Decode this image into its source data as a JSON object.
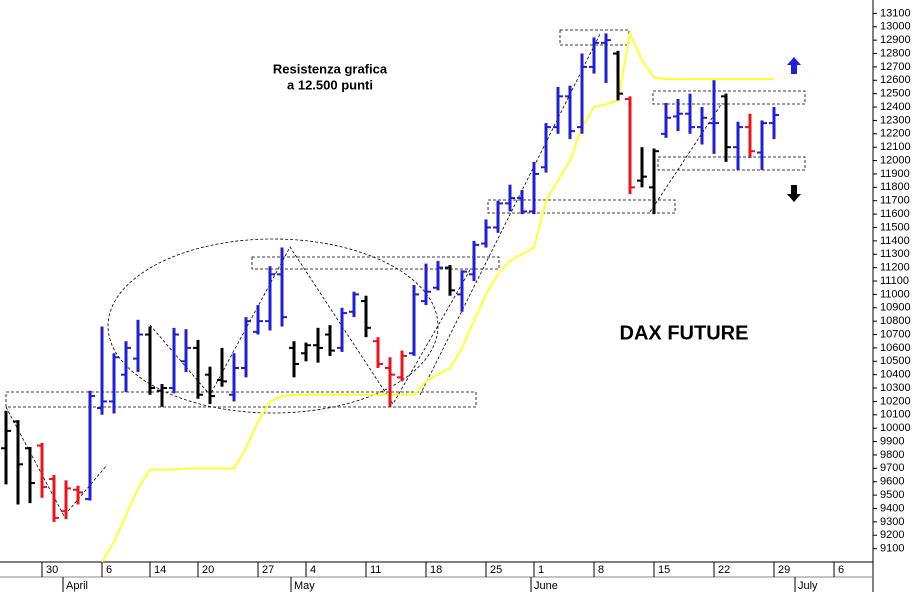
{
  "chart_data": {
    "type": "ohlc",
    "categories": [
      null,
      null,
      null,
      "30",
      null,
      null,
      null,
      null,
      "6",
      null,
      null,
      null,
      "14",
      null,
      null,
      null,
      "20",
      null,
      null,
      null,
      null,
      "27",
      null,
      null,
      null,
      "4",
      null,
      null,
      null,
      null,
      "11",
      null,
      null,
      null,
      null,
      "18",
      null,
      null,
      null,
      null,
      "25",
      null,
      null,
      null,
      "1",
      null,
      null,
      null,
      null,
      "8",
      null,
      null,
      null,
      null,
      "15",
      null,
      null,
      null,
      null,
      "22",
      null,
      null,
      null,
      null,
      "29",
      null,
      null,
      null,
      null,
      "6",
      null,
      null,
      null
    ],
    "month_categories": [
      null,
      null,
      null,
      null,
      null,
      "April",
      null,
      null,
      null,
      null,
      null,
      null,
      null,
      null,
      null,
      null,
      null,
      null,
      null,
      null,
      null,
      null,
      null,
      null,
      "May",
      null,
      null,
      null,
      null,
      null,
      null,
      null,
      null,
      null,
      null,
      null,
      null,
      null,
      null,
      null,
      null,
      null,
      null,
      null,
      "June",
      null,
      null,
      null,
      null,
      null,
      null,
      null,
      null,
      null,
      null,
      null,
      null,
      null,
      null,
      null,
      null,
      null,
      null,
      null,
      null,
      null,
      "July",
      null,
      null,
      null,
      null,
      null,
      null
    ],
    "series": {
      "open": [
        9850,
        10050,
        9850,
        9870,
        9620,
        9380,
        9540,
        9470,
        10150,
        10200,
        10400,
        10520,
        10700,
        10280,
        10300,
        10500,
        10600,
        10400,
        10360,
        10250,
        10450,
        10720,
        10800,
        11150,
        10600,
        10560,
        10620,
        10700,
        10600,
        10870,
        10950,
        10650,
        10450,
        10380,
        10560,
        10950,
        11050,
        11200,
        11000,
        11150,
        11380,
        11500,
        11680,
        11720,
        11620,
        11950,
        12250,
        12480,
        12250,
        12700,
        12880,
        12800,
        12460,
        11850,
        11800,
        12200,
        12330,
        12350,
        12250,
        12280,
        12480,
        12100,
        12250,
        12060,
        12280,
        null,
        null,
        null,
        null,
        null,
        null,
        null,
        null
      ],
      "high": [
        10130,
        10060,
        9860,
        9890,
        9650,
        9610,
        9570,
        10280,
        10760,
        10560,
        10650,
        10810,
        10760,
        10330,
        10750,
        10740,
        10660,
        10460,
        10600,
        10560,
        10830,
        10920,
        11210,
        11350,
        10650,
        10640,
        10750,
        10770,
        10900,
        11020,
        10990,
        10680,
        10530,
        10580,
        11070,
        11230,
        11250,
        11220,
        11180,
        11400,
        11560,
        11700,
        11820,
        11780,
        11990,
        12280,
        12550,
        12560,
        12800,
        12920,
        12950,
        12820,
        12480,
        12100,
        12090,
        12430,
        12460,
        12500,
        12400,
        12600,
        12500,
        12290,
        12350,
        12300,
        12400,
        null,
        null,
        null,
        null,
        null,
        null,
        null,
        null
      ],
      "low": [
        9580,
        9430,
        9440,
        9480,
        9300,
        9320,
        9430,
        9460,
        10100,
        10110,
        10270,
        10420,
        10250,
        10160,
        10260,
        10420,
        10220,
        10180,
        10310,
        10200,
        10380,
        10700,
        10730,
        10760,
        10380,
        10500,
        10490,
        10540,
        10570,
        10830,
        10680,
        10450,
        10160,
        10350,
        10540,
        10920,
        11030,
        10990,
        10870,
        11100,
        11350,
        11460,
        11620,
        11600,
        11600,
        11910,
        12200,
        12160,
        12200,
        12650,
        12580,
        12450,
        11750,
        11800,
        11600,
        12170,
        12220,
        12200,
        12120,
        12050,
        11990,
        11930,
        12020,
        11930,
        12160,
        null,
        null,
        null,
        null,
        null,
        null,
        null,
        null
      ],
      "close": [
        9980,
        9730,
        9590,
        9560,
        9330,
        9550,
        9520,
        10240,
        10200,
        10530,
        10600,
        10700,
        10300,
        10300,
        10700,
        10600,
        10250,
        10240,
        10350,
        10450,
        10800,
        10800,
        11150,
        10830,
        10480,
        10620,
        10600,
        10580,
        10860,
        11000,
        10750,
        10480,
        10400,
        10540,
        11000,
        11020,
        11200,
        11030,
        11170,
        11370,
        11500,
        11680,
        11720,
        11620,
        11900,
        12250,
        12480,
        12220,
        12700,
        12880,
        12900,
        12500,
        11800,
        11880,
        12070,
        12320,
        12350,
        12250,
        12320,
        12280,
        12100,
        12250,
        12070,
        12280,
        12340,
        null,
        null,
        null,
        null,
        null,
        null,
        null,
        null
      ],
      "colors": [
        "#000000",
        "#000000",
        "#000000",
        "#e8141c",
        "#e8141c",
        "#e8141c",
        "#e8141c",
        "#1f1fd6",
        "#1f1fd6",
        "#1f1fd6",
        "#1f1fd6",
        "#1f1fd6",
        "#000000",
        "#000000",
        "#1f1fd6",
        "#1f1fd6",
        "#000000",
        "#000000",
        "#000000",
        "#1f1fd6",
        "#1f1fd6",
        "#1f1fd6",
        "#1f1fd6",
        "#1f1fd6",
        "#000000",
        "#000000",
        "#000000",
        "#000000",
        "#1f1fd6",
        "#1f1fd6",
        "#000000",
        "#e8141c",
        "#e8141c",
        "#e8141c",
        "#1f1fd6",
        "#1f1fd6",
        "#1f1fd6",
        "#000000",
        "#1f1fd6",
        "#1f1fd6",
        "#1f1fd6",
        "#1f1fd6",
        "#1f1fd6",
        "#1f1fd6",
        "#1f1fd6",
        "#1f1fd6",
        "#1f1fd6",
        "#1f1fd6",
        "#1f1fd6",
        "#1f1fd6",
        "#1f1fd6",
        "#000000",
        "#e8141c",
        "#000000",
        "#000000",
        "#1f1fd6",
        "#1f1fd6",
        "#1f1fd6",
        "#1f1fd6",
        "#1f1fd6",
        "#000000",
        "#1f1fd6",
        "#e8141c",
        "#1f1fd6",
        "#1f1fd6",
        null,
        null,
        null,
        null,
        null,
        null,
        null,
        null
      ]
    },
    "line": {
      "color": "#ffff33",
      "values": [
        null,
        null,
        null,
        null,
        null,
        null,
        null,
        null,
        9000,
        9150,
        9350,
        9550,
        9690,
        9690,
        9690,
        9700,
        9700,
        9700,
        9700,
        9700,
        9850,
        10050,
        10200,
        10240,
        10250,
        10250,
        10250,
        10250,
        10250,
        10250,
        10250,
        10250,
        10250,
        10250,
        10250,
        10350,
        10400,
        10450,
        10600,
        10800,
        11000,
        11150,
        11250,
        11300,
        11350,
        11700,
        11850,
        12000,
        12250,
        12400,
        12420,
        12450,
        12950,
        12750,
        12620,
        12610,
        12610,
        12610,
        12610,
        12610,
        12610,
        12610,
        12610,
        12610,
        12610,
        null,
        null,
        null,
        null,
        null,
        null,
        null,
        null
      ]
    },
    "ylim": [
      9000,
      13200
    ],
    "yticks": [
      9100,
      9200,
      9300,
      9400,
      9500,
      9600,
      9700,
      9800,
      9900,
      10000,
      10100,
      10200,
      10300,
      10400,
      10500,
      10600,
      10700,
      10800,
      10900,
      11000,
      11100,
      11200,
      11300,
      11400,
      11500,
      11600,
      11700,
      11800,
      11900,
      12000,
      12100,
      12200,
      12300,
      12400,
      12500,
      12600,
      12700,
      12800,
      12900,
      13000,
      13100
    ],
    "annotations": [
      "Resistenza grafica",
      "a 12.500 punti"
    ],
    "chart_label": "DAX FUTURE"
  }
}
